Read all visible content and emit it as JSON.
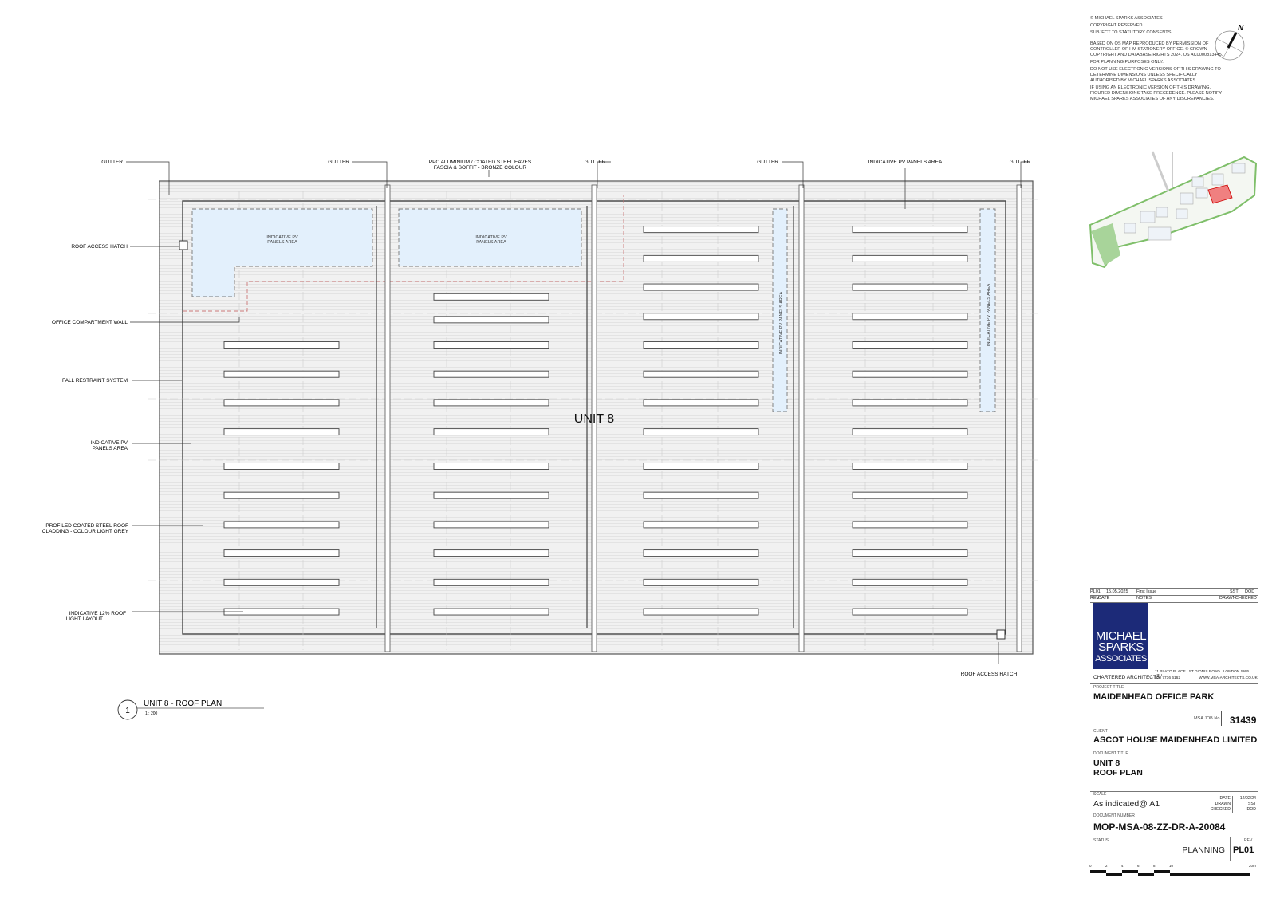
{
  "notes": [
    "© MICHAEL SPARKS ASSOCIATES",
    "COPYRIGHT RESERVED.",
    "SUBJECT TO STATUTORY CONSENTS.",
    "BASED ON OS MAP REPRODUCED BY PERMISSION OF CONTROLLER OF HM STATIONERY OFFICE. © CROWN COPYRIGHT AND DATABASE RIGHTS 2024. OS AC0000813445.",
    "FOR PLANNING PURPOSES ONLY.",
    "DO NOT USE ELECTRONIC VERSIONS OF THIS DRAWING TO DETERMINE DIMENSIONS UNLESS SPECIFICALLY AUTHORISED BY MICHAEL SPARKS ASSOCIATES.",
    "IF USING AN ELECTRONIC VERSION OF THIS DRAWING, FIGURED DIMENSIONS TAKE PRECEDENCE. PLEASE NOTIFY MICHAEL SPARKS ASSOCIATES OF ANY DISCREPANCIES."
  ],
  "north_label": "N",
  "plan": {
    "unit_label": "UNIT 8",
    "top_labels": {
      "gutter": "GUTTER",
      "eaves_1": "PPC ALUMINIUM / COATED STEEL EAVES",
      "eaves_2": "FASCIA & SOFFIT - BRONZE COLOUR",
      "pv_area": "INDICATIVE PV PANELS AREA"
    },
    "left_labels": {
      "roof_access_hatch": "ROOF ACCESS HATCH",
      "office_wall": "OFFICE COMPARTMENT WALL",
      "fall_restraint": "FALL RESTRAINT SYSTEM",
      "pv_1": "INDICATIVE PV",
      "pv_2": "PANELS AREA",
      "cladding_1": "PROFILED COATED STEEL ROOF",
      "cladding_2": "CLADDING - COLOUR LIGHT GREY",
      "rooflight_1": "INDICATIVE 12% ROOF",
      "rooflight_2": "LIGHT LAYOUT"
    },
    "bottom_right_label": "ROOF ACCESS HATCH",
    "pv_area_labels": {
      "line1": "INDICATIVE PV",
      "line2": "PANELS AREA",
      "vertical": "INDICATIVE PV PANELS AREA"
    },
    "view_number": "1",
    "view_title": "UNIT 8 - ROOF PLAN",
    "view_scale": "1 : 200"
  },
  "colors": {
    "pv_fill": "#e3f0fc",
    "wall_red": "#c77",
    "logo_blue": "#1c2a78",
    "site_highlight": "#f08080",
    "landscape": "#7fbf6a"
  },
  "title_block": {
    "revision": {
      "rev": "PL01",
      "date": "15.05.2025",
      "notes": "First Issue",
      "drawn": "SST",
      "checked": "DOD"
    },
    "rev_headers": {
      "rev": "REV",
      "date": "DATE",
      "notes": "NOTES",
      "drawn": "DRAWN",
      "checked": "CHECKED"
    },
    "logo": [
      "MICHAEL",
      "SPARKS",
      "ASSOCIATES"
    ],
    "practice": "CHARTERED ARCHITECTS",
    "address": [
      "11 PLATO PLACE",
      "ST DIONIS ROAD",
      "LONDON SW6 4TU"
    ],
    "phone": "020 7736 6162",
    "web": "WWW.MSA-ARCHITECTS.CO.UK",
    "project_title_label": "PROJECT TITLE",
    "project_title": "MAIDENHEAD OFFICE PARK",
    "job_no_label": "MSA JOB No.",
    "job_no": "31439",
    "client_label": "CLIENT",
    "client": "ASCOT HOUSE MAIDENHEAD LIMITED",
    "document_title_label": "DOCUMENT TITLE",
    "document_title_1": "UNIT 8",
    "document_title_2": "ROOF PLAN",
    "scale_label": "SCALE",
    "scale": "As indicated@ A1",
    "date_label": "DATE",
    "date": "12/02/24",
    "drawn_label": "DRAWN",
    "drawn": "SST",
    "checked_label": "CHECKED",
    "checked": "DOD",
    "doc_number_label": "DOCUMENT NUMBER",
    "doc_number": "MOP-MSA-08-ZZ-DR-A-20084",
    "status_label": "STATUS",
    "status": "PLANNING",
    "rev_label": "REV",
    "rev": "PL01",
    "scale_bar_ticks": [
      "0",
      "2",
      "4",
      "6",
      "8",
      "10",
      "20",
      "m"
    ]
  }
}
